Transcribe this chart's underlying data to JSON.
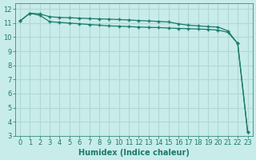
{
  "xlabel": "Humidex (Indice chaleur)",
  "ylabel": "",
  "bg_color": "#c8ecea",
  "grid_color": "#b0d8d5",
  "line_color": "#1a7a6a",
  "marker_color": "#1a7a6a",
  "xlim": [
    -0.5,
    23.5
  ],
  "ylim": [
    3,
    12.4
  ],
  "xticks": [
    0,
    1,
    2,
    3,
    4,
    5,
    6,
    7,
    8,
    9,
    10,
    11,
    12,
    13,
    14,
    15,
    16,
    17,
    18,
    19,
    20,
    21,
    22,
    23
  ],
  "yticks": [
    3,
    4,
    5,
    6,
    7,
    8,
    9,
    10,
    11,
    12
  ],
  "series1_x": [
    0,
    1,
    2,
    3,
    4,
    5,
    6,
    7,
    8,
    9,
    10,
    11,
    12,
    13,
    14,
    15,
    16,
    17,
    18,
    19,
    20,
    21,
    22,
    23
  ],
  "series1_y": [
    11.15,
    11.7,
    11.65,
    11.45,
    11.4,
    11.38,
    11.35,
    11.32,
    11.3,
    11.28,
    11.25,
    11.22,
    11.18,
    11.15,
    11.12,
    11.08,
    10.95,
    10.85,
    10.8,
    10.75,
    10.72,
    10.45,
    9.55,
    3.3
  ],
  "series2_x": [
    0,
    1,
    2,
    3,
    4,
    5,
    6,
    7,
    8,
    9,
    10,
    11,
    12,
    13,
    14,
    15,
    16,
    17,
    18,
    19,
    20,
    21,
    22,
    23
  ],
  "series2_y": [
    11.15,
    11.7,
    11.55,
    11.1,
    11.05,
    11.0,
    10.95,
    10.9,
    10.85,
    10.8,
    10.78,
    10.75,
    10.72,
    10.7,
    10.68,
    10.65,
    10.62,
    10.6,
    10.58,
    10.55,
    10.5,
    10.35,
    9.55,
    3.3
  ],
  "axis_fontsize": 7,
  "tick_fontsize": 6
}
